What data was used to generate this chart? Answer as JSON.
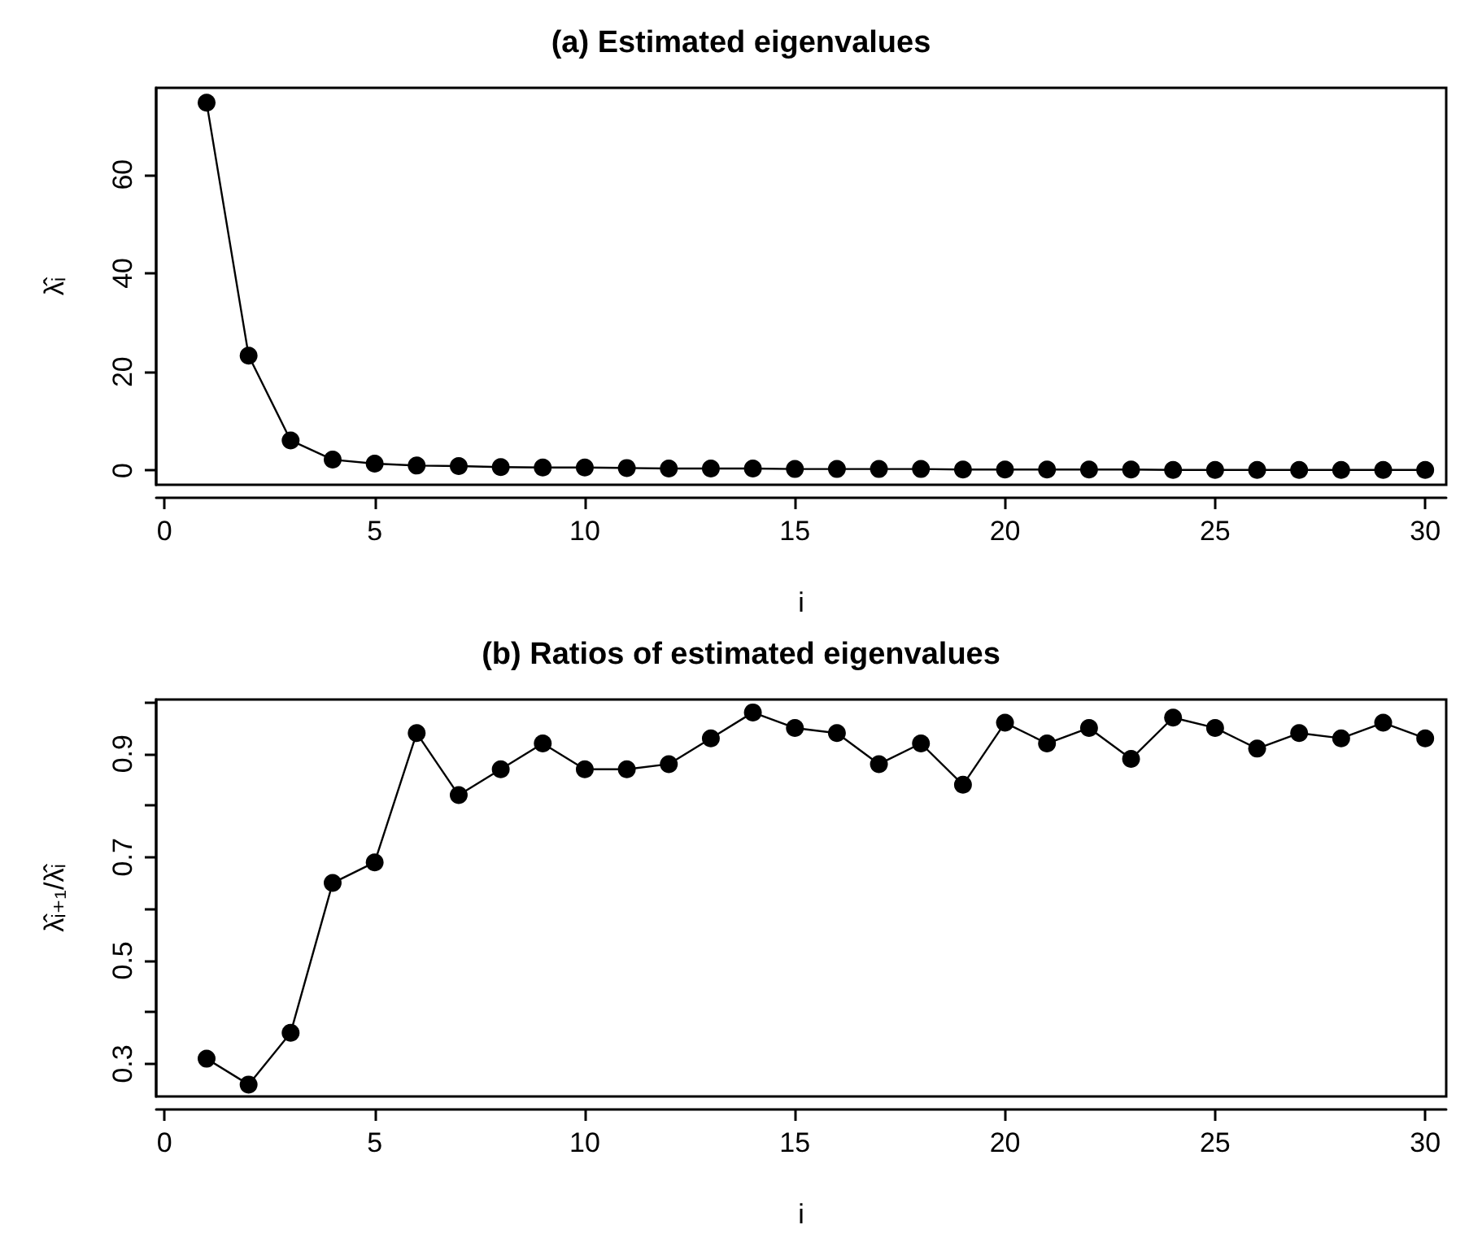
{
  "chart_data": [
    {
      "type": "line",
      "title": "(a) Estimated eigenvalues",
      "xlabel": "i",
      "ylabel": "λ̂ᵢ",
      "marker": "circle",
      "line_style": "solid",
      "grid": false,
      "x": [
        1,
        2,
        3,
        4,
        5,
        6,
        7,
        8,
        9,
        10,
        11,
        12,
        13,
        14,
        15,
        16,
        17,
        18,
        19,
        20,
        21,
        22,
        23,
        24,
        25,
        26,
        27,
        28,
        29,
        30
      ],
      "series": [
        {
          "color": "#000000",
          "values": [
            74.6,
            23.3,
            6.1,
            2.2,
            1.4,
            1.0,
            0.9,
            0.7,
            0.6,
            0.6,
            0.5,
            0.4,
            0.4,
            0.4,
            0.3,
            0.3,
            0.3,
            0.3,
            0.2,
            0.2,
            0.2,
            0.2,
            0.2,
            0.1,
            0.1,
            0.1,
            0.1,
            0.1,
            0.1,
            0.1
          ]
        }
      ],
      "xlim": [
        -0.2,
        30.5
      ],
      "ylim": [
        -2.9,
        77.6
      ],
      "xticks": [
        0,
        5,
        10,
        15,
        20,
        25,
        30
      ],
      "yticks": [
        0,
        20,
        40,
        60
      ]
    },
    {
      "type": "line",
      "title": "(b) Ratios of estimated eigenvalues",
      "xlabel": "i",
      "ylabel": "λ̂ᵢ₊₁/λ̂ᵢ",
      "marker": "circle",
      "line_style": "solid",
      "grid": false,
      "x": [
        1,
        2,
        3,
        4,
        5,
        6,
        7,
        8,
        9,
        10,
        11,
        12,
        13,
        14,
        15,
        16,
        17,
        18,
        19,
        20,
        21,
        22,
        23,
        24,
        25,
        26,
        27,
        28,
        29,
        30
      ],
      "series": [
        {
          "color": "#000000",
          "values": [
            0.31,
            0.26,
            0.36,
            0.65,
            0.69,
            0.94,
            0.82,
            0.87,
            0.92,
            0.87,
            0.87,
            0.88,
            0.93,
            0.98,
            0.95,
            0.94,
            0.88,
            0.92,
            0.84,
            0.96,
            0.92,
            0.95,
            0.89,
            0.97,
            0.95,
            0.91,
            0.94,
            0.93,
            0.96,
            0.93
          ]
        }
      ],
      "xlim": [
        -0.2,
        30.5
      ],
      "ylim": [
        0.237,
        1.005
      ],
      "xticks": [
        0,
        5,
        10,
        15,
        20,
        25,
        30
      ],
      "yticks": [
        0.3,
        {
          "value": 0.4,
          "label": null
        },
        0.5,
        {
          "value": 0.6,
          "label": null
        },
        0.7,
        {
          "value": 0.8,
          "label": null
        },
        0.9,
        {
          "value": 1.0,
          "label": null
        }
      ]
    }
  ]
}
